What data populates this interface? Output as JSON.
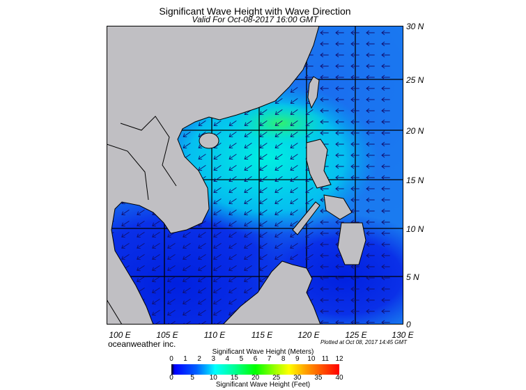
{
  "title": "Significant Wave Height with Wave Direction",
  "subtitle": "Valid For Oct-08-2017 16:00 GMT",
  "lat_labels": [
    "30 N",
    "25 N",
    "20 N",
    "15 N",
    "10 N",
    "5 N",
    "0"
  ],
  "lon_labels": [
    "100 E",
    "105 E",
    "110 E",
    "115 E",
    "120 E",
    "125 E",
    "130 E"
  ],
  "brand": "oceanweather inc.",
  "plotted": "Plotted at Oct 08, 2017 14:45 GMT",
  "colorbar": {
    "meters_title": "Significant Wave Height (Meters)",
    "meters_ticks": [
      "0",
      "1",
      "2",
      "3",
      "4",
      "5",
      "6",
      "7",
      "8",
      "9",
      "10",
      "11",
      "12"
    ],
    "feet_title": "Significant Wave Height (Feet)",
    "feet_ticks": [
      "0",
      "5",
      "10",
      "15",
      "20",
      "25",
      "30",
      "35",
      "40"
    ]
  },
  "colors": {
    "land": "#c0bfc3",
    "sea_deep": "#0a2ee8",
    "sea_mid": "#1a78f0",
    "sea_high": "#00e8e0",
    "sea_peak": "#20f070",
    "arrow": "#101070"
  }
}
